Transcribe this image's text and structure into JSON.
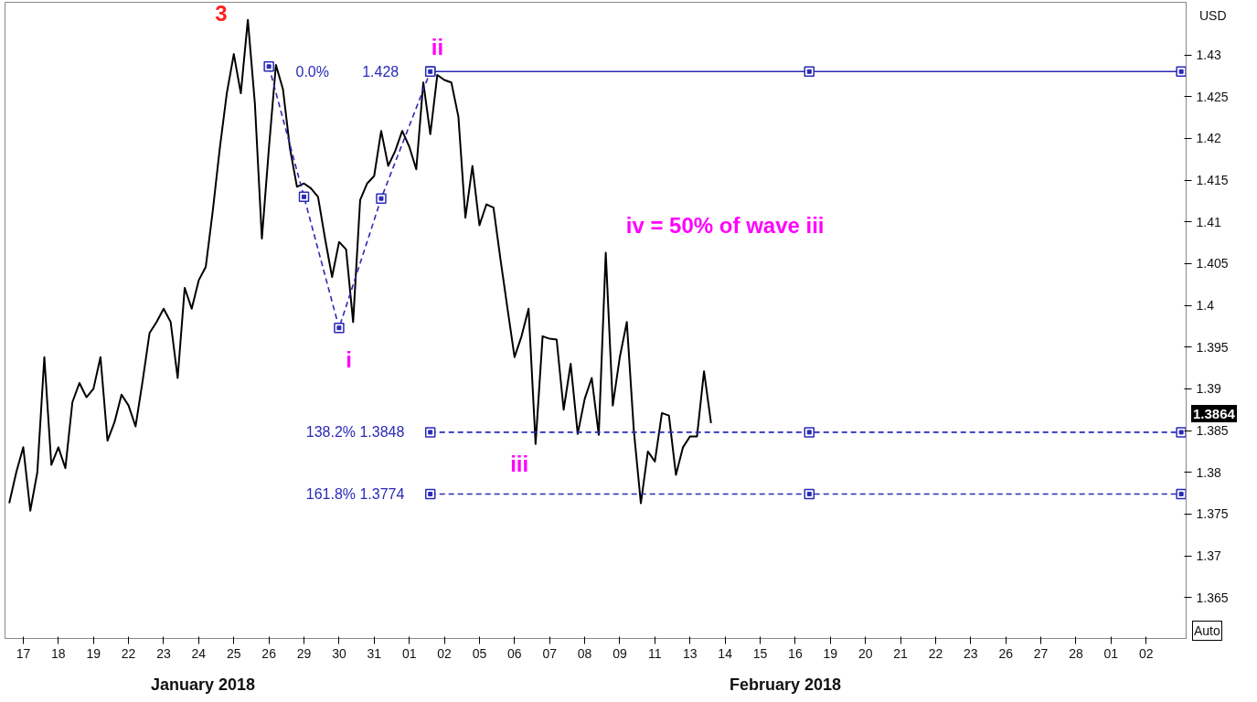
{
  "chart_data": {
    "type": "line",
    "ylabel": "USD",
    "categories": [
      null,
      null,
      "17",
      null,
      null,
      null,
      null,
      "18",
      null,
      null,
      null,
      null,
      "19",
      null,
      null,
      null,
      null,
      "22",
      null,
      null,
      null,
      null,
      "23",
      null,
      null,
      null,
      null,
      "24",
      null,
      null,
      null,
      null,
      "25",
      null,
      null,
      null,
      null,
      "26",
      null,
      null,
      null,
      null,
      "29",
      null,
      null,
      null,
      null,
      "30",
      null,
      null,
      null,
      null,
      "31",
      null,
      null,
      null,
      null,
      "01",
      null,
      null,
      null,
      null,
      "02",
      null,
      null,
      null,
      null,
      "05",
      null,
      null,
      null,
      null,
      "06",
      null,
      null,
      null,
      null,
      "07",
      null,
      null,
      null,
      null,
      "08",
      null,
      null,
      null,
      null,
      "09",
      null,
      null,
      null,
      null,
      "11",
      null,
      null,
      null,
      null,
      "13",
      null,
      null,
      null,
      null,
      "14",
      null,
      null,
      null,
      null,
      "15",
      null,
      null,
      null,
      null,
      "16",
      null,
      null,
      null,
      null,
      "19",
      null,
      null,
      null,
      null,
      "20",
      null,
      null,
      null,
      null,
      "21",
      null,
      null,
      null,
      null,
      "22",
      null,
      null,
      null,
      null,
      "23",
      null,
      null,
      null,
      null,
      "26",
      null,
      null,
      null,
      null,
      "27",
      null,
      null,
      null,
      null,
      "28",
      null,
      null,
      null,
      null,
      "01",
      null,
      null,
      null,
      null,
      "02",
      null,
      null,
      null,
      null,
      null
    ],
    "ylim": [
      1.3601,
      1.4363
    ],
    "yticks": [
      1.365,
      1.37,
      1.375,
      1.38,
      1.385,
      1.39,
      1.395,
      1.4,
      1.405,
      1.41,
      1.415,
      1.42,
      1.425,
      1.43
    ],
    "series": [
      {
        "color": "#000000",
        "line_style": "solid",
        "marker": "none",
        "values": [
          1.3763,
          1.38,
          1.383,
          1.3754,
          1.38,
          1.3938,
          1.3809,
          1.383,
          1.3805,
          1.3884,
          1.3907,
          1.389,
          1.39,
          1.3938,
          1.3838,
          1.386,
          1.3893,
          1.388,
          1.3855,
          1.3909,
          1.3967,
          1.398,
          1.3996,
          1.398,
          1.3913,
          1.4021,
          1.3996,
          1.403,
          1.4046,
          1.4113,
          1.4188,
          1.4254,
          1.4301,
          1.4254,
          1.4342,
          1.4242,
          1.408,
          1.4188,
          1.4288,
          1.4259,
          1.4188,
          1.4142,
          1.4146,
          1.414,
          1.413,
          1.408,
          1.4034,
          1.4076,
          1.4067,
          1.398,
          1.4126,
          1.4146,
          1.4155,
          1.4209,
          1.4167,
          1.4185,
          1.4209,
          1.419,
          1.4163,
          1.4267,
          1.4205,
          1.4276,
          1.427,
          1.4267,
          1.4226,
          1.4105,
          1.4167,
          1.4096,
          1.4121,
          1.4117,
          1.4055,
          1.3996,
          1.3938,
          1.3963,
          1.3996,
          1.3834,
          1.3963,
          1.396,
          1.3959,
          1.3875,
          1.393,
          1.3846,
          1.3888,
          1.3913,
          1.3845,
          1.4063,
          1.388,
          1.3938,
          1.398,
          1.385,
          1.3763,
          1.3825,
          1.3813,
          1.3871,
          1.3868,
          1.3797,
          1.383,
          1.3843,
          1.3843,
          1.3921,
          1.3859,
          null,
          null,
          null,
          null,
          null,
          null,
          null,
          null,
          null,
          null,
          null,
          null,
          null,
          null,
          null,
          null,
          null,
          null,
          null,
          null,
          null,
          null,
          null,
          null,
          null,
          null,
          null,
          null,
          null,
          null,
          null,
          null,
          null,
          null,
          null,
          null,
          null,
          null,
          null,
          null,
          null,
          null,
          null,
          null,
          null,
          null,
          null,
          null,
          null,
          null,
          null,
          null,
          null,
          null,
          null,
          null,
          null,
          null,
          null,
          null,
          null,
          null,
          null,
          null,
          null,
          null,
          null
        ]
      },
      {
        "color": "#2a2ab8",
        "line_style": "dashed",
        "marker": "square",
        "values": [
          null,
          null,
          null,
          null,
          null,
          null,
          null,
          null,
          null,
          null,
          null,
          null,
          null,
          null,
          null,
          null,
          null,
          null,
          null,
          null,
          null,
          null,
          null,
          null,
          null,
          null,
          null,
          null,
          null,
          null,
          null,
          null,
          null,
          null,
          null,
          null,
          null,
          1.4286,
          null,
          null,
          null,
          null,
          1.413,
          null,
          null,
          null,
          null,
          1.3973,
          null,
          null,
          null,
          null,
          null,
          1.4128,
          null,
          null,
          null,
          null,
          null,
          null,
          1.428,
          null,
          null,
          null,
          null,
          null,
          null,
          null,
          null,
          null,
          null,
          null,
          null,
          null,
          null,
          null,
          null,
          null,
          null,
          null,
          null,
          null,
          null,
          null,
          null,
          null,
          null,
          null,
          null,
          null,
          null,
          null,
          null,
          null,
          null,
          null,
          null,
          null,
          null,
          null,
          null,
          null,
          null,
          null,
          null,
          null,
          null,
          null,
          null,
          null,
          null,
          null,
          null,
          null,
          null,
          null,
          null,
          null,
          null,
          null,
          null,
          null,
          null,
          null,
          null,
          null,
          null,
          null,
          null,
          null,
          null,
          null,
          null,
          null,
          null,
          null,
          null,
          null,
          null,
          null,
          null,
          null,
          null,
          null,
          null,
          null,
          null,
          null,
          null,
          null,
          null,
          null,
          null,
          null,
          null,
          null,
          null,
          null,
          null,
          null,
          null,
          null,
          null,
          null,
          null,
          null,
          null,
          null
        ]
      },
      {
        "color": "#2a2ab8",
        "line_style": "solid",
        "marker": "square",
        "values": [
          null,
          null,
          null,
          null,
          null,
          null,
          null,
          null,
          null,
          null,
          null,
          null,
          null,
          null,
          null,
          null,
          null,
          null,
          null,
          null,
          null,
          null,
          null,
          null,
          null,
          null,
          null,
          null,
          null,
          null,
          null,
          null,
          null,
          null,
          null,
          null,
          null,
          null,
          null,
          null,
          null,
          null,
          null,
          null,
          null,
          null,
          null,
          null,
          null,
          null,
          null,
          null,
          null,
          null,
          null,
          null,
          null,
          null,
          null,
          null,
          1.428,
          null,
          null,
          null,
          null,
          null,
          null,
          null,
          null,
          null,
          null,
          null,
          null,
          null,
          null,
          null,
          null,
          null,
          null,
          null,
          null,
          null,
          null,
          null,
          null,
          null,
          null,
          null,
          null,
          null,
          null,
          null,
          null,
          null,
          null,
          null,
          null,
          null,
          null,
          null,
          null,
          null,
          null,
          null,
          null,
          null,
          null,
          null,
          null,
          null,
          null,
          null,
          null,
          null,
          1.428,
          null,
          null,
          null,
          null,
          null,
          null,
          null,
          null,
          null,
          null,
          null,
          null,
          null,
          null,
          null,
          null,
          null,
          null,
          null,
          null,
          null,
          null,
          null,
          null,
          null,
          null,
          null,
          null,
          null,
          null,
          null,
          null,
          null,
          null,
          null,
          null,
          null,
          null,
          null,
          null,
          null,
          null,
          null,
          null,
          null,
          null,
          null,
          null,
          null,
          null,
          null,
          null,
          1.428
        ]
      },
      {
        "color": "#2a2ab8",
        "line_style": "dashed",
        "marker": "square",
        "values": [
          null,
          null,
          null,
          null,
          null,
          null,
          null,
          null,
          null,
          null,
          null,
          null,
          null,
          null,
          null,
          null,
          null,
          null,
          null,
          null,
          null,
          null,
          null,
          null,
          null,
          null,
          null,
          null,
          null,
          null,
          null,
          null,
          null,
          null,
          null,
          null,
          null,
          null,
          null,
          null,
          null,
          null,
          null,
          null,
          null,
          null,
          null,
          null,
          null,
          null,
          null,
          null,
          null,
          null,
          null,
          null,
          null,
          null,
          null,
          null,
          1.3848,
          null,
          null,
          null,
          null,
          null,
          null,
          null,
          null,
          null,
          null,
          null,
          null,
          null,
          null,
          null,
          null,
          null,
          null,
          null,
          null,
          null,
          null,
          null,
          null,
          null,
          null,
          null,
          null,
          null,
          null,
          null,
          null,
          null,
          null,
          null,
          null,
          null,
          null,
          null,
          null,
          null,
          null,
          null,
          null,
          null,
          null,
          null,
          null,
          null,
          null,
          null,
          null,
          null,
          1.3848,
          null,
          null,
          null,
          null,
          null,
          null,
          null,
          null,
          null,
          null,
          null,
          null,
          null,
          null,
          null,
          null,
          null,
          null,
          null,
          null,
          null,
          null,
          null,
          null,
          null,
          null,
          null,
          null,
          null,
          null,
          null,
          null,
          null,
          null,
          null,
          null,
          null,
          null,
          null,
          null,
          null,
          null,
          null,
          null,
          null,
          null,
          null,
          null,
          null,
          null,
          null,
          null,
          1.3848
        ]
      },
      {
        "color": "#2a2ab8",
        "line_style": "dashed",
        "marker": "square",
        "values": [
          null,
          null,
          null,
          null,
          null,
          null,
          null,
          null,
          null,
          null,
          null,
          null,
          null,
          null,
          null,
          null,
          null,
          null,
          null,
          null,
          null,
          null,
          null,
          null,
          null,
          null,
          null,
          null,
          null,
          null,
          null,
          null,
          null,
          null,
          null,
          null,
          null,
          null,
          null,
          null,
          null,
          null,
          null,
          null,
          null,
          null,
          null,
          null,
          null,
          null,
          null,
          null,
          null,
          null,
          null,
          null,
          null,
          null,
          null,
          null,
          1.3774,
          null,
          null,
          null,
          null,
          null,
          null,
          null,
          null,
          null,
          null,
          null,
          null,
          null,
          null,
          null,
          null,
          null,
          null,
          null,
          null,
          null,
          null,
          null,
          null,
          null,
          null,
          null,
          null,
          null,
          null,
          null,
          null,
          null,
          null,
          null,
          null,
          null,
          null,
          null,
          null,
          null,
          null,
          null,
          null,
          null,
          null,
          null,
          null,
          null,
          null,
          null,
          null,
          null,
          1.3774,
          null,
          null,
          null,
          null,
          null,
          null,
          null,
          null,
          null,
          null,
          null,
          null,
          null,
          null,
          null,
          null,
          null,
          null,
          null,
          null,
          null,
          null,
          null,
          null,
          null,
          null,
          null,
          null,
          null,
          null,
          null,
          null,
          null,
          null,
          null,
          null,
          null,
          null,
          null,
          null,
          null,
          null,
          null,
          null,
          null,
          null,
          null,
          null,
          null,
          null,
          null,
          null,
          1.3774
        ]
      }
    ],
    "annotations": [
      "3",
      "i",
      "ii",
      "iii",
      "iv = 50% of wave iii",
      "0.0%",
      "1.428",
      "138.2% 1.3848",
      "161.8% 1.3774",
      "1.3864",
      "January 2018",
      "February 2018",
      "Auto"
    ]
  }
}
